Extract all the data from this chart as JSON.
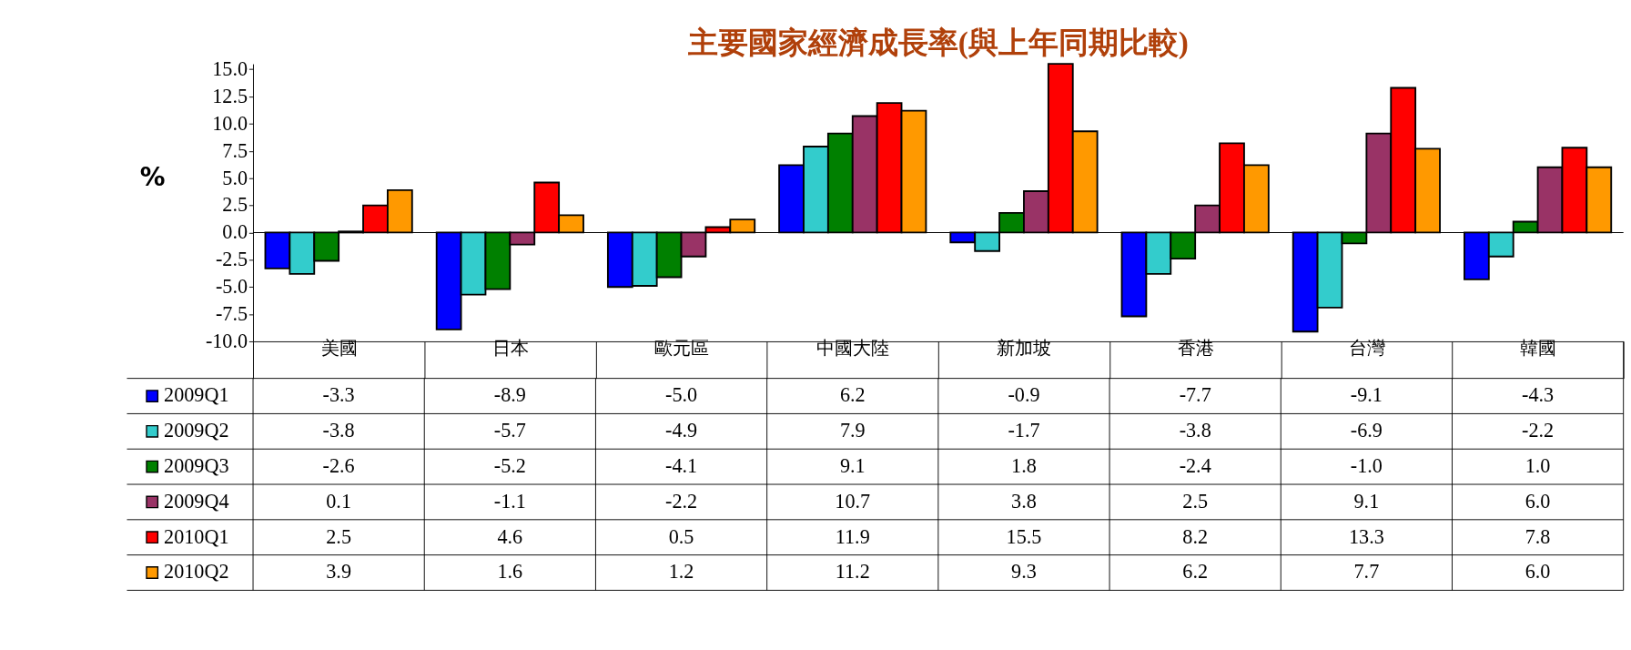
{
  "chart_data": {
    "type": "bar",
    "title": "主要國家經濟成長率(與上年同期比較)",
    "ylabel": "%",
    "categories": [
      "美國",
      "日本",
      "歐元區",
      "中國大陸",
      "新加坡",
      "香港",
      "台灣",
      "韓國"
    ],
    "series": [
      {
        "name": "2009Q1",
        "color": "#0000ff",
        "values": [
          -3.3,
          -8.9,
          -5.0,
          6.2,
          -0.9,
          -7.7,
          -9.1,
          -4.3
        ],
        "value_labels": [
          "-3.3",
          "-8.9",
          "-5.0",
          "6.2",
          "-0.9",
          "-7.7",
          "-9.1",
          "-4.3"
        ]
      },
      {
        "name": "2009Q2",
        "color": "#33cccc",
        "values": [
          -3.8,
          -5.7,
          -4.9,
          7.9,
          -1.7,
          -3.8,
          -6.9,
          -2.2
        ],
        "value_labels": [
          "-3.8",
          "-5.7",
          "-4.9",
          "7.9",
          "-1.7",
          "-3.8",
          "-6.9",
          "-2.2"
        ]
      },
      {
        "name": "2009Q3",
        "color": "#008000",
        "values": [
          -2.6,
          -5.2,
          -4.1,
          9.1,
          1.8,
          -2.4,
          -1.0,
          1.0
        ],
        "value_labels": [
          "-2.6",
          "-5.2",
          "-4.1",
          "9.1",
          "1.8",
          "-2.4",
          "-1.0",
          "1.0"
        ]
      },
      {
        "name": "2009Q4",
        "color": "#993366",
        "values": [
          0.1,
          -1.1,
          -2.2,
          10.7,
          3.8,
          2.5,
          9.1,
          6.0
        ],
        "value_labels": [
          "0.1",
          "-1.1",
          "-2.2",
          "10.7",
          "3.8",
          "2.5",
          "9.1",
          "6.0"
        ]
      },
      {
        "name": "2010Q1",
        "color": "#ff0000",
        "values": [
          2.5,
          4.6,
          0.5,
          11.9,
          15.5,
          8.2,
          13.3,
          7.8
        ],
        "value_labels": [
          "2.5",
          "4.6",
          "0.5",
          "11.9",
          "15.5",
          "8.2",
          "13.3",
          "7.8"
        ]
      },
      {
        "name": "2010Q2",
        "color": "#ff9900",
        "values": [
          3.9,
          1.6,
          1.2,
          11.2,
          9.3,
          6.2,
          7.7,
          6.0
        ],
        "value_labels": [
          "3.9",
          "1.6",
          "1.2",
          "11.2",
          "9.3",
          "6.2",
          "7.7",
          "6.0"
        ]
      }
    ],
    "ylim": [
      -10,
      15.5
    ],
    "yticks": [
      {
        "value": -10,
        "label": "-10.0"
      },
      {
        "value": -7.5,
        "label": "-7.5"
      },
      {
        "value": -5,
        "label": "-5.0"
      },
      {
        "value": -2.5,
        "label": "-2.5"
      },
      {
        "value": 0,
        "label": "0.0"
      },
      {
        "value": 2.5,
        "label": "2.5"
      },
      {
        "value": 5,
        "label": "5.0"
      },
      {
        "value": 7.5,
        "label": "7.5"
      },
      {
        "value": 10,
        "label": "10.0"
      },
      {
        "value": 12.5,
        "label": "12.5"
      },
      {
        "value": 15,
        "label": "15.0"
      }
    ],
    "legend": "bottom left"
  }
}
